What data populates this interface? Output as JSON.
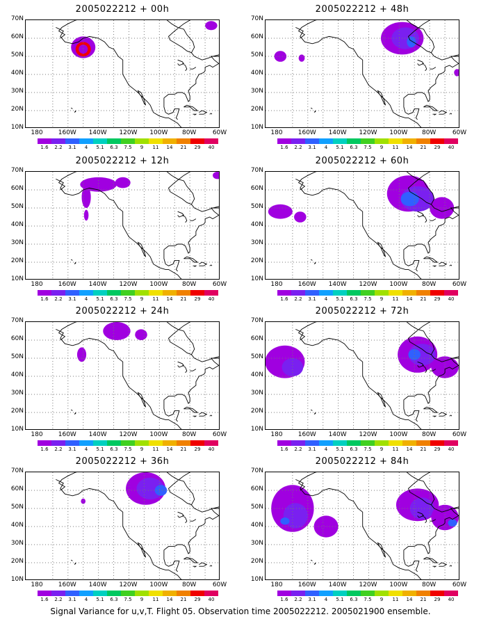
{
  "panels": [
    {
      "title": "2005022212 + 00h"
    },
    {
      "title": "2005022212 + 12h"
    },
    {
      "title": "2005022212 + 24h"
    },
    {
      "title": "2005022212 + 36h"
    },
    {
      "title": "2005022212 + 48h"
    },
    {
      "title": "2005022212 + 60h"
    },
    {
      "title": "2005022212 + 72h"
    },
    {
      "title": "2005022212 + 84h"
    }
  ],
  "y_axis_labels": [
    "70N",
    "60N",
    "50N",
    "40N",
    "30N",
    "20N",
    "10N"
  ],
  "x_axis_labels": [
    "180",
    "160W",
    "140W",
    "120W",
    "100W",
    "80W",
    "60W"
  ],
  "colorbar": {
    "labels": [
      "1.6",
      "2.2",
      "3.1",
      "4",
      "5.1",
      "6.3",
      "7.5",
      "9",
      "11",
      "14",
      "21",
      "29",
      "40"
    ],
    "colors": [
      "#a000e0",
      "#7a20f0",
      "#3060ff",
      "#10a0ff",
      "#00d0c0",
      "#00c860",
      "#40d020",
      "#a0e000",
      "#f0e000",
      "#f0b000",
      "#f08000",
      "#f00000",
      "#e00060"
    ]
  },
  "footer": "Signal Variance for u,v,T. Flight 05. Observation time 2005022212. 2005021900 ensemble."
}
